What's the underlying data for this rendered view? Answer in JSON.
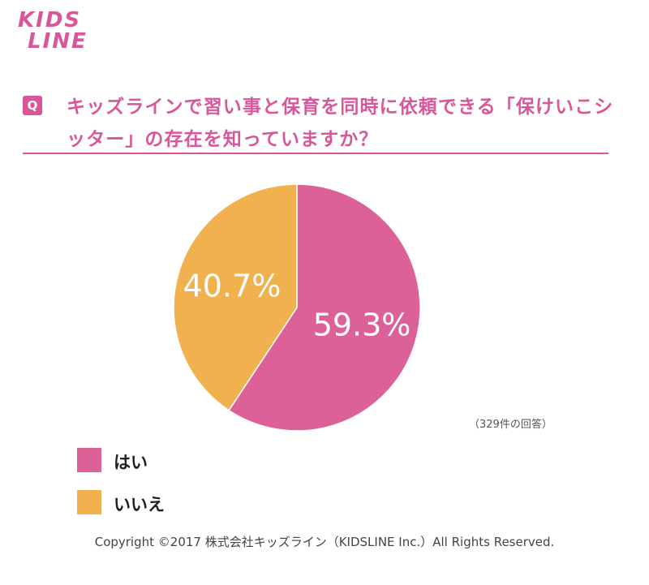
{
  "logo": [
    "KIDS",
    "LINE"
  ],
  "q_badge": "Q",
  "copyright": "Copyright ©2017 株式会社キッズライン（KIDSLINE Inc.）All Rights Reserved.",
  "chart_data": {
    "type": "pie",
    "title": "キッズラインで習い事と保育を同時に依頼できる「保けいこシッター」の存在を知っていますか？",
    "note": "（329件の回答）",
    "categories": [
      "はい",
      "いいえ"
    ],
    "values": [
      59.3,
      40.7
    ],
    "value_labels": [
      "59.3%",
      "40.7%"
    ],
    "colors": [
      "#dc6199",
      "#f2b14f"
    ]
  }
}
